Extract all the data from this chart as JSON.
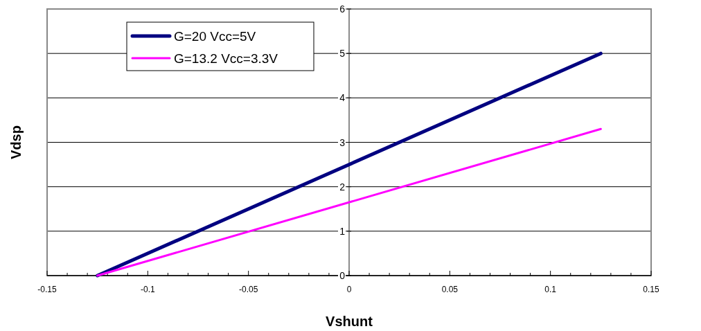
{
  "chart_data": {
    "type": "line",
    "xlabel": "Vshunt",
    "ylabel": "Vdsp",
    "xlim": [
      -0.15,
      0.15
    ],
    "xticks": [
      -0.15,
      {
        "value": -0.14,
        "label": null
      },
      {
        "value": -0.13,
        "label": null
      },
      {
        "value": -0.12,
        "label": null
      },
      {
        "value": -0.11,
        "label": null
      },
      -0.1,
      {
        "value": -0.09,
        "label": null
      },
      {
        "value": -0.08,
        "label": null
      },
      {
        "value": -0.07,
        "label": null
      },
      {
        "value": -0.06,
        "label": null
      },
      -0.05,
      {
        "value": -0.04,
        "label": null
      },
      {
        "value": -0.03,
        "label": null
      },
      {
        "value": -0.02,
        "label": null
      },
      {
        "value": -0.01,
        "label": null
      },
      0,
      {
        "value": 0.01,
        "label": null
      },
      {
        "value": 0.02,
        "label": null
      },
      {
        "value": 0.03,
        "label": null
      },
      {
        "value": 0.04,
        "label": null
      },
      0.05,
      {
        "value": 0.06,
        "label": null
      },
      {
        "value": 0.07,
        "label": null
      },
      {
        "value": 0.08,
        "label": null
      },
      {
        "value": 0.09,
        "label": null
      },
      0.1,
      {
        "value": 0.11,
        "label": null
      },
      {
        "value": 0.12,
        "label": null
      },
      {
        "value": 0.13,
        "label": null
      },
      {
        "value": 0.14,
        "label": null
      },
      0.15
    ],
    "ylim": [
      0,
      6
    ],
    "yticks": [
      0,
      1,
      2,
      3,
      4,
      5,
      6
    ],
    "grid": "y",
    "legend": "top left",
    "marker": "none",
    "line_style": "solid",
    "x": [
      -0.125,
      0.125
    ],
    "series": [
      {
        "name": "G=20 Vcc=5V",
        "color": "#000080",
        "values": [
          0,
          5
        ]
      },
      {
        "name": "G=13.2 Vcc=3.3V",
        "color": "#ff00ff",
        "values": [
          0,
          3.3
        ]
      }
    ]
  }
}
